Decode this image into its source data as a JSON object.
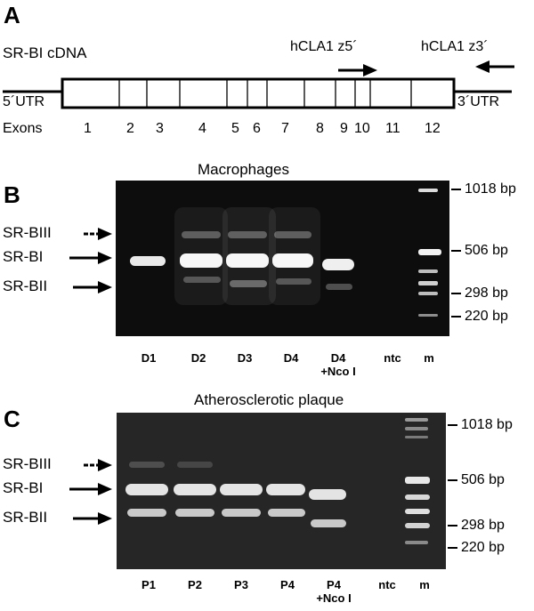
{
  "panel_a": {
    "letter": "A",
    "cdna_label": "SR-BI cDNA",
    "utr5": "5´UTR",
    "utr3": "3´UTR",
    "exons_label": "Exons",
    "exons": [
      "1",
      "2",
      "3",
      "4",
      "5",
      "6",
      "7",
      "8",
      "9",
      "10",
      "11",
      "12"
    ],
    "primer_fwd": "hCLA1 z5´",
    "primer_rev": "hCLA1 z3´"
  },
  "panel_b": {
    "letter": "B",
    "title": "Macrophages",
    "left_labels": [
      "SR-BIII",
      "SR-BI",
      "SR-BII"
    ],
    "right_labels": [
      "1018 bp",
      "506 bp",
      "298 bp",
      "220 bp"
    ],
    "lanes": [
      "D1",
      "D2",
      "D3",
      "D4",
      "D4",
      "ntc",
      "m"
    ],
    "lane_sub": "+Nco I"
  },
  "panel_c": {
    "letter": "C",
    "title": "Atherosclerotic plaque",
    "left_labels": [
      "SR-BIII",
      "SR-BI",
      "SR-BII"
    ],
    "right_labels": [
      "1018 bp",
      "506 bp",
      "298 bp",
      "220 bp"
    ],
    "lanes": [
      "P1",
      "P2",
      "P3",
      "P4",
      "P4",
      "ntc",
      "m"
    ],
    "lane_sub": "+Nco I"
  }
}
